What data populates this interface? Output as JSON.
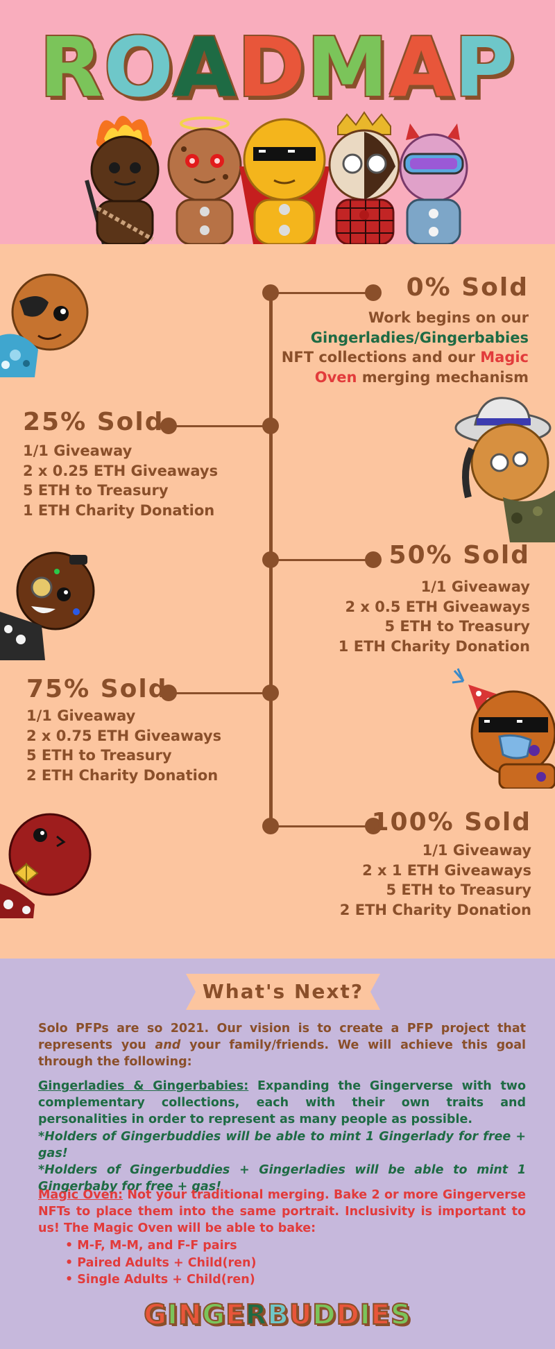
{
  "header": {
    "title_letters": [
      "R",
      "O",
      "A",
      "D",
      "M",
      "A",
      "P"
    ],
    "title_colors": [
      "#7bc45a",
      "#6ec7c9",
      "#1e6b44",
      "#e8563a",
      "#7bc45a",
      "#e8563a",
      "#6ec7c9"
    ],
    "background": "#f9adbd"
  },
  "colors": {
    "brown": "#8a4f2a",
    "peach": "#fcc59f",
    "lavender": "#c6b8dc",
    "green": "#1e6b44",
    "red": "#e23b3b"
  },
  "milestones": {
    "m0": {
      "heading": "0% Sold",
      "line1": "Work begins on our",
      "line2": "Gingerladies/Gingerbabies",
      "line3_a": "NFT collections and our ",
      "line3_b": "Magic",
      "line4_a": "Oven",
      "line4_b": " merging mechanism"
    },
    "m25": {
      "heading": "25% Sold",
      "items": [
        "1/1 Giveaway",
        "2 x 0.25 ETH Giveaways",
        "5 ETH to Treasury",
        "1 ETH Charity Donation"
      ]
    },
    "m50": {
      "heading": "50% Sold",
      "items": [
        "1/1 Giveaway",
        "2 x 0.5 ETH Giveaways",
        "5 ETH to Treasury",
        "1 ETH Charity Donation"
      ]
    },
    "m75": {
      "heading": "75% Sold",
      "items": [
        "1/1 Giveaway",
        "2 x 0.75 ETH Giveaways",
        "5 ETH to Treasury",
        "2 ETH Charity Donation"
      ]
    },
    "m100": {
      "heading": "100% Sold",
      "items": [
        "1/1 Giveaway",
        "2 x 1 ETH Giveaways",
        "5 ETH to Treasury",
        "2 ETH Charity Donation"
      ]
    }
  },
  "whats_next": {
    "title": "What's Next?",
    "intro_a": "Solo PFPs are so 2021. Our vision is to create a PFP project that represents you ",
    "intro_b": "and",
    "intro_c": " your family/friends. We will achieve this goal through the following:",
    "gl_label": "Gingerladies & Gingerbabies:",
    "gl_text": " Expanding the Gingerverse with two complementary collections, each with their own traits and personalities in order to represent as many people as possible.",
    "gl_note1": "*Holders of Gingerbuddies will be able to mint 1 Gingerlady for free + gas!",
    "gl_note2": "*Holders of Gingerbuddies + Gingerladies will be able to mint 1 Gingerbaby for free + gas!",
    "mo_label": "Magic Oven:",
    "mo_text": " Not your traditional merging. Bake 2 or more Gingerverse NFTs to place them into the same portrait. Inclusivity is important to us! The Magic Oven will be able to bake:",
    "bullets": [
      "• M-F, M-M, and F-F pairs",
      "• Paired Adults + Child(ren)",
      "• Single Adults + Child(ren)"
    ]
  },
  "logo": {
    "letters": [
      "G",
      "I",
      "N",
      "G",
      "E",
      "R",
      "B",
      "U",
      "D",
      "D",
      "I",
      "E",
      "S"
    ],
    "colors": [
      "#e8563a",
      "#7bc45a",
      "#e8563a",
      "#7bc45a",
      "#e8563a",
      "#1e6b44",
      "#6ec7c9",
      "#e8563a",
      "#7bc45a",
      "#e8563a",
      "#7bc45a",
      "#e8563a",
      "#7bc45a"
    ]
  }
}
